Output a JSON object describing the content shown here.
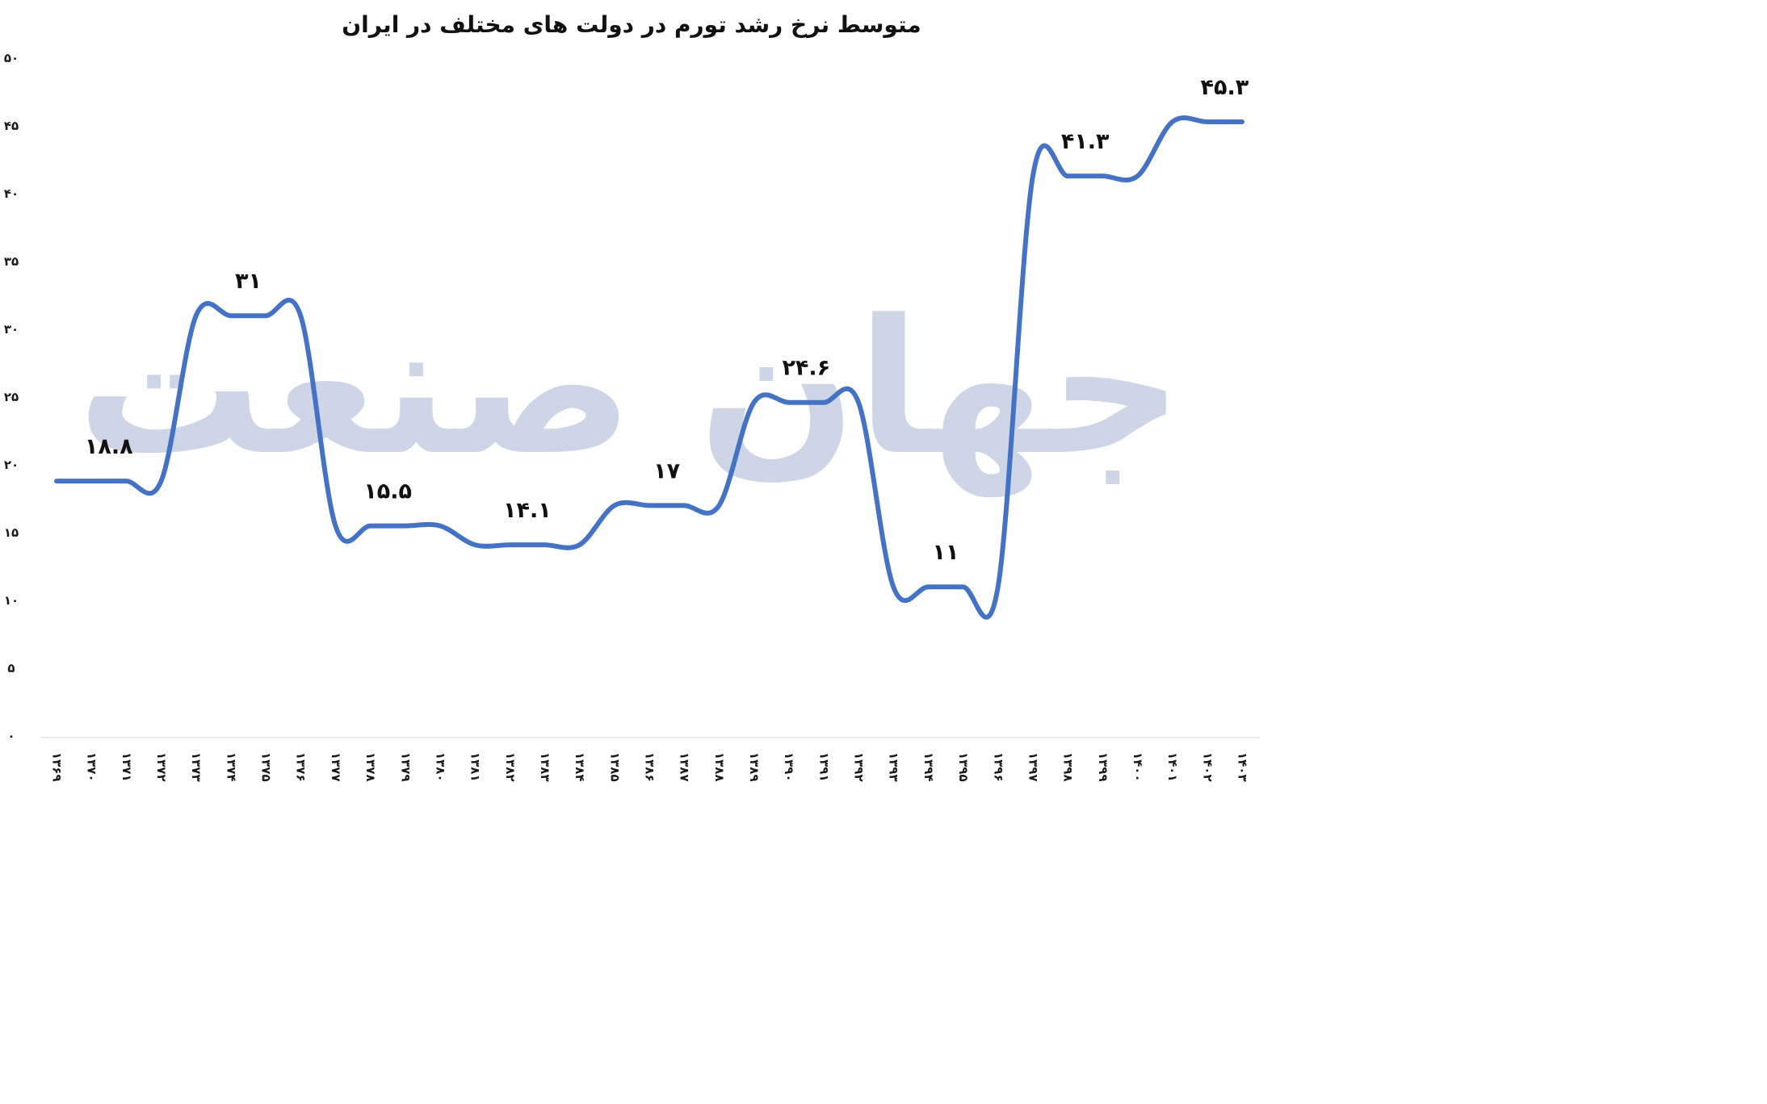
{
  "chart_data": {
    "type": "line",
    "title": "متوسط نرخ رشد تورم در دولت های مختلف در ایران",
    "xlabel": "",
    "ylabel": "",
    "ylim": [
      0,
      50
    ],
    "yticks": [
      "۰",
      "۵",
      "۱۰",
      "۱۵",
      "۲۰",
      "۲۵",
      "۳۰",
      "۳۵",
      "۴۰",
      "۴۵",
      "۵۰"
    ],
    "ytick_values": [
      0,
      5,
      10,
      15,
      20,
      25,
      30,
      35,
      40,
      45,
      50
    ],
    "categories": [
      "۱۳۶۹",
      "۱۳۷۰",
      "۱۳۷۱",
      "۱۳۷۲",
      "۱۳۷۳",
      "۱۳۷۴",
      "۱۳۷۵",
      "۱۳۷۶",
      "۱۳۷۷",
      "۱۳۷۸",
      "۱۳۷۹",
      "۱۳۸۰",
      "۱۳۸۱",
      "۱۳۸۲",
      "۱۳۸۳",
      "۱۳۸۴",
      "۱۳۸۵",
      "۱۳۸۶",
      "۱۳۸۷",
      "۱۳۸۸",
      "۱۳۸۹",
      "۱۳۹۰",
      "۱۳۹۱",
      "۱۳۹۲",
      "۱۳۹۳",
      "۱۳۹۴",
      "۱۳۹۵",
      "۱۳۹۶",
      "۱۳۹۷",
      "۱۳۹۸",
      "۱۳۹۹",
      "۱۴۰۰",
      "۱۴۰۱",
      "۱۴۰۲",
      "۱۴۰۳"
    ],
    "series": [
      {
        "values": [
          18.8,
          18.8,
          18.8,
          18.8,
          31,
          31,
          31,
          31,
          15.5,
          15.5,
          15.5,
          15.5,
          14.1,
          14.1,
          14.1,
          14.1,
          17,
          17,
          17,
          17,
          24.6,
          24.6,
          24.6,
          24.6,
          11,
          11,
          11,
          11,
          41.3,
          41.3,
          41.3,
          41.3,
          45.3,
          45.3,
          45.3
        ],
        "color": "#4472c4"
      }
    ],
    "annotations": [
      {
        "text": "۱۸.۸",
        "x_index": 1.5,
        "y": 18.8
      },
      {
        "text": "۳۱",
        "x_index": 5.5,
        "y": 31
      },
      {
        "text": "۱۵.۵",
        "x_index": 9.5,
        "y": 15.5
      },
      {
        "text": "۱۴.۱",
        "x_index": 13.5,
        "y": 14.1
      },
      {
        "text": "۱۷",
        "x_index": 17.5,
        "y": 17
      },
      {
        "text": "۲۴.۶",
        "x_index": 21.5,
        "y": 24.6
      },
      {
        "text": "۱۱",
        "x_index": 25.5,
        "y": 11
      },
      {
        "text": "۴۱.۳",
        "x_index": 29.5,
        "y": 41.3
      },
      {
        "text": "۴۵.۳",
        "x_index": 33.5,
        "y": 45.3
      }
    ],
    "grid": false,
    "legend": "none"
  },
  "watermark": {
    "text": "جهان صنعت",
    "color": "#cdd5e6"
  }
}
